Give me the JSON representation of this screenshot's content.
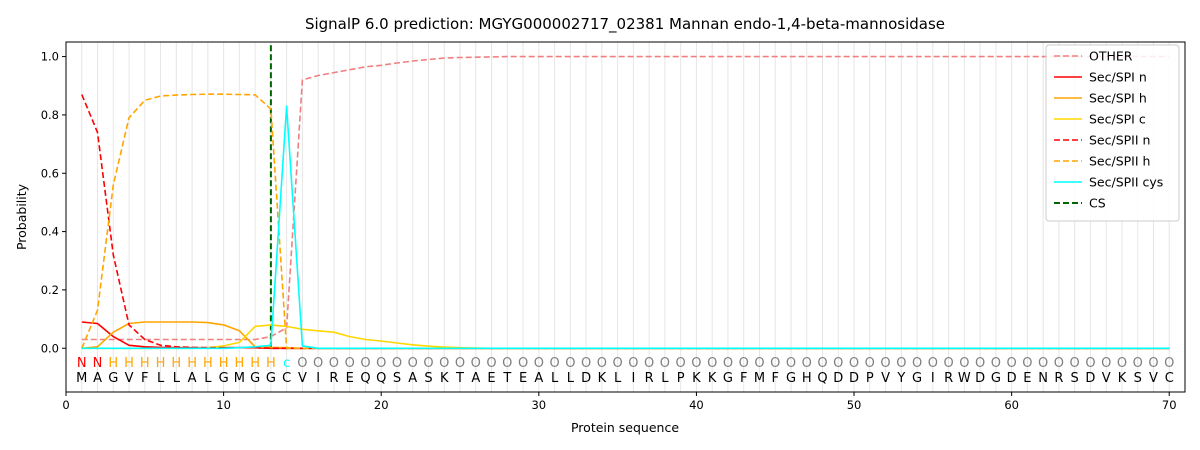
{
  "chart_data": {
    "type": "line",
    "title": "SignalP 6.0 prediction: MGYG000002717_02381 Mannan endo-1,4-beta-mannosidase",
    "xlabel": "Protein sequence",
    "ylabel": "Probability",
    "xlim": [
      0,
      71
    ],
    "ylim": [
      -0.15,
      1.05
    ],
    "x_ticks": [
      0,
      10,
      20,
      30,
      40,
      50,
      60,
      70
    ],
    "y_ticks": [
      0.0,
      0.2,
      0.4,
      0.6,
      0.8,
      1.0
    ],
    "grid": "vertical lines at each residue",
    "legend_position": "top-right",
    "sequence": [
      "M",
      "A",
      "G",
      "V",
      "F",
      "L",
      "L",
      "A",
      "L",
      "G",
      "M",
      "G",
      "G",
      "C",
      "V",
      "I",
      "R",
      "E",
      "Q",
      "Q",
      "S",
      "A",
      "S",
      "K",
      "T",
      "A",
      "E",
      "T",
      "E",
      "A",
      "L",
      "L",
      "D",
      "K",
      "L",
      "I",
      "R",
      "L",
      "P",
      "K",
      "K",
      "G",
      "F",
      "M",
      "F",
      "G",
      "H",
      "Q",
      "D",
      "D",
      "P",
      "V",
      "Y",
      "G",
      "I",
      "R",
      "W",
      "D",
      "G",
      "D",
      "E",
      "N",
      "R",
      "S",
      "D",
      "V",
      "K",
      "S",
      "V",
      "C"
    ],
    "annotation": [
      "N",
      "N",
      "H",
      "H",
      "H",
      "H",
      "H",
      "H",
      "H",
      "H",
      "H",
      "H",
      "H",
      "c",
      "O",
      "O",
      "O",
      "O",
      "O",
      "O",
      "O",
      "O",
      "O",
      "O",
      "O",
      "O",
      "O",
      "O",
      "O",
      "O",
      "O",
      "O",
      "O",
      "O",
      "O",
      "O",
      "O",
      "O",
      "O",
      "O",
      "O",
      "O",
      "O",
      "O",
      "O",
      "O",
      "O",
      "O",
      "O",
      "O",
      "O",
      "O",
      "O",
      "O",
      "O",
      "O",
      "O",
      "O",
      "O",
      "O",
      "O",
      "O",
      "O",
      "O",
      "O",
      "O",
      "O",
      "O",
      "O",
      "O"
    ],
    "annotation_colors": {
      "N": "#ff0000",
      "H": "#ffa500",
      "c": "#00ffff",
      "O": "#808080"
    },
    "cs_position": 13,
    "series": [
      {
        "name": "OTHER",
        "color": "#f08080",
        "dash": "dashed",
        "x": [
          1,
          2,
          3,
          4,
          5,
          6,
          7,
          8,
          9,
          10,
          11,
          12,
          13,
          14,
          15,
          16,
          17,
          18,
          19,
          20,
          21,
          22,
          23,
          24,
          25,
          26,
          27,
          28,
          70
        ],
        "values": [
          0.03,
          0.03,
          0.03,
          0.03,
          0.03,
          0.03,
          0.03,
          0.03,
          0.03,
          0.03,
          0.03,
          0.03,
          0.04,
          0.07,
          0.92,
          0.935,
          0.945,
          0.955,
          0.965,
          0.97,
          0.978,
          0.985,
          0.99,
          0.995,
          0.997,
          0.998,
          0.999,
          1.0,
          1.0
        ]
      },
      {
        "name": "Sec/SPI n",
        "color": "#ff0000",
        "dash": "solid",
        "x": [
          1,
          2,
          3,
          4,
          5,
          6,
          7,
          8,
          9,
          10,
          11,
          12,
          13,
          14,
          15,
          16,
          70
        ],
        "values": [
          0.09,
          0.085,
          0.04,
          0.01,
          0.005,
          0.003,
          0.002,
          0.002,
          0.002,
          0.002,
          0.002,
          0.002,
          0.0,
          0.0,
          0.0,
          0.0,
          0.0
        ]
      },
      {
        "name": "Sec/SPI h",
        "color": "#ffa500",
        "dash": "solid",
        "x": [
          1,
          2,
          3,
          4,
          5,
          6,
          7,
          8,
          9,
          10,
          11,
          12,
          13,
          14,
          15,
          70
        ],
        "values": [
          0.0,
          0.005,
          0.055,
          0.085,
          0.09,
          0.09,
          0.09,
          0.09,
          0.088,
          0.08,
          0.06,
          0.005,
          0.003,
          0.002,
          0.0,
          0.0
        ]
      },
      {
        "name": "Sec/SPI c",
        "color": "#ffd700",
        "dash": "solid",
        "x": [
          1,
          2,
          3,
          4,
          5,
          6,
          7,
          8,
          9,
          10,
          11,
          12,
          13,
          14,
          15,
          16,
          17,
          18,
          19,
          20,
          21,
          22,
          23,
          24,
          25,
          26,
          27,
          70
        ],
        "values": [
          0.0,
          0.0,
          0.0,
          0.0,
          0.0,
          0.0,
          0.0,
          0.0,
          0.002,
          0.008,
          0.02,
          0.075,
          0.08,
          0.075,
          0.065,
          0.06,
          0.055,
          0.04,
          0.03,
          0.025,
          0.018,
          0.012,
          0.007,
          0.004,
          0.002,
          0.001,
          0.0,
          0.0
        ]
      },
      {
        "name": "Sec/SPII n",
        "color": "#ff0000",
        "dash": "dashed",
        "x": [
          1,
          2,
          3,
          4,
          5,
          6,
          7,
          8,
          9,
          10,
          11,
          12,
          13,
          14,
          15,
          70
        ],
        "values": [
          0.87,
          0.74,
          0.32,
          0.08,
          0.03,
          0.01,
          0.005,
          0.003,
          0.002,
          0.002,
          0.002,
          0.002,
          0.0,
          0.0,
          0.0,
          0.0
        ]
      },
      {
        "name": "Sec/SPII h",
        "color": "#ffa500",
        "dash": "dashed",
        "x": [
          1,
          2,
          3,
          4,
          5,
          6,
          7,
          8,
          9,
          10,
          11,
          12,
          13,
          14,
          15,
          70
        ],
        "values": [
          0.0,
          0.13,
          0.56,
          0.79,
          0.85,
          0.865,
          0.868,
          0.87,
          0.871,
          0.871,
          0.87,
          0.869,
          0.82,
          0.0,
          0.0,
          0.0
        ]
      },
      {
        "name": "Sec/SPII cys",
        "color": "#00ffff",
        "dash": "solid",
        "x": [
          1,
          2,
          3,
          4,
          5,
          6,
          7,
          8,
          9,
          10,
          11,
          12,
          13,
          14,
          15,
          16,
          70
        ],
        "values": [
          0.0,
          0.0,
          0.0,
          0.0,
          0.0,
          0.0,
          0.0,
          0.0,
          0.0,
          0.0,
          0.002,
          0.005,
          0.01,
          0.83,
          0.008,
          0.0,
          0.0
        ]
      },
      {
        "name": "CS",
        "color": "#006400",
        "dash": "dashed",
        "x": [
          13,
          13
        ],
        "values": [
          0.0,
          1.04
        ]
      }
    ]
  }
}
